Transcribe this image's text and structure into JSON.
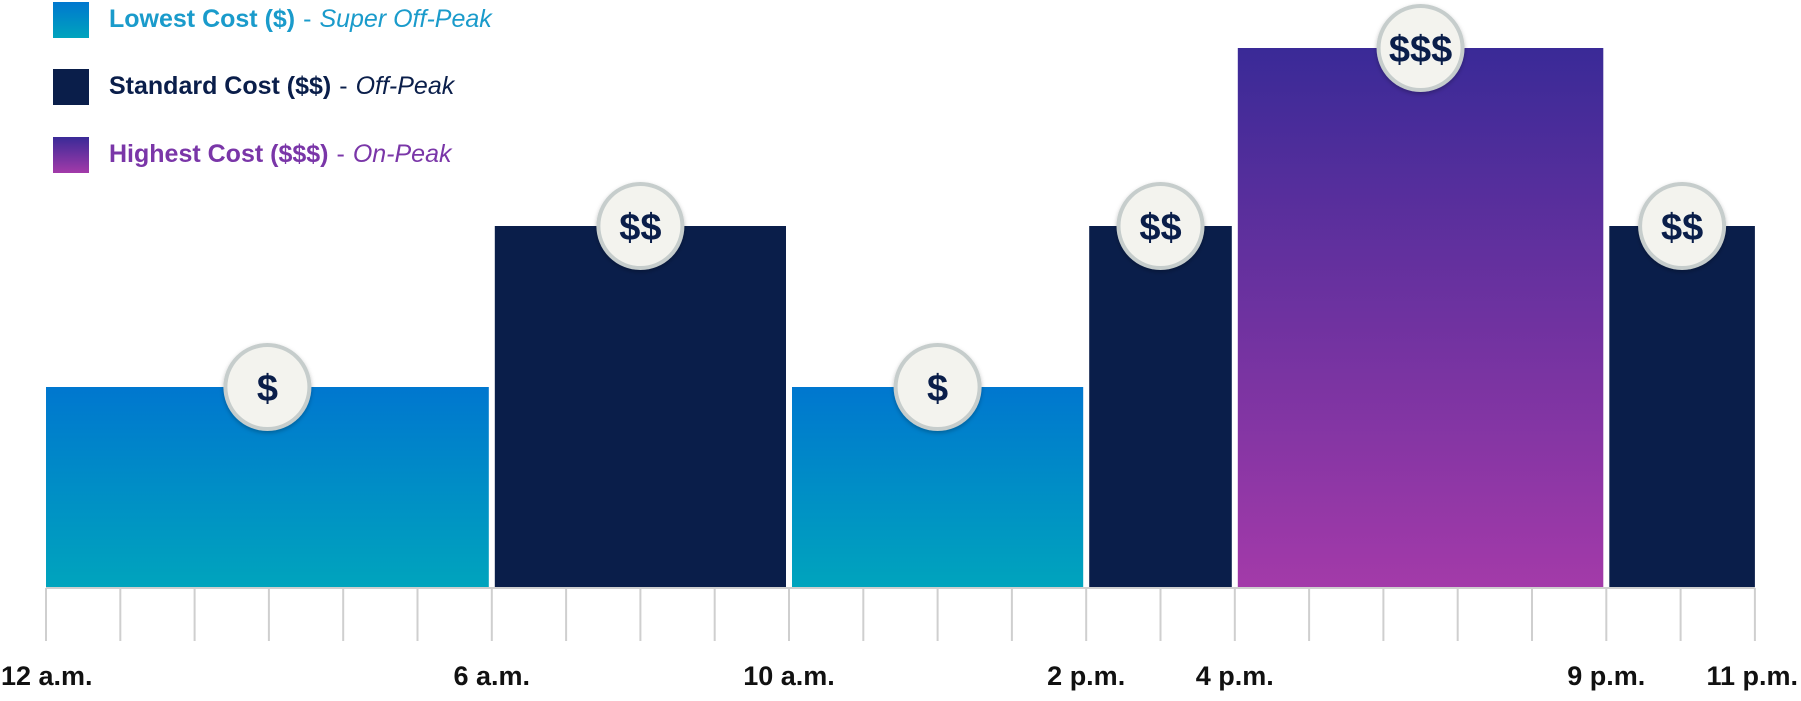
{
  "legend_separator": "-",
  "tiers": [
    {
      "label": "Lowest Cost ($)",
      "sublabel": "Super Off-Peak",
      "symbol": "$"
    },
    {
      "label": "Standard Cost ($$)",
      "sublabel": "Off-Peak",
      "symbol": "$$"
    },
    {
      "label": "Highest Cost ($$$)",
      "sublabel": "On-Peak",
      "symbol": "$$$"
    }
  ],
  "time_labels": [
    "12 a.m.",
    "6 a.m.",
    "10 a.m.",
    "2 p.m.",
    "4 p.m.",
    "9 p.m.",
    "11 p.m."
  ],
  "periods": [
    {
      "from": "12 a.m.",
      "to": "6 a.m.",
      "tier": "$"
    },
    {
      "from": "6 a.m.",
      "to": "10 a.m.",
      "tier": "$$"
    },
    {
      "from": "10 a.m.",
      "to": "2 p.m.",
      "tier": "$"
    },
    {
      "from": "2 p.m.",
      "to": "4 p.m.",
      "tier": "$$"
    },
    {
      "from": "4 p.m.",
      "to": "9 p.m.",
      "tier": "$$$"
    },
    {
      "from": "9 p.m.",
      "to": "11 p.m.",
      "tier": "$$"
    }
  ]
}
